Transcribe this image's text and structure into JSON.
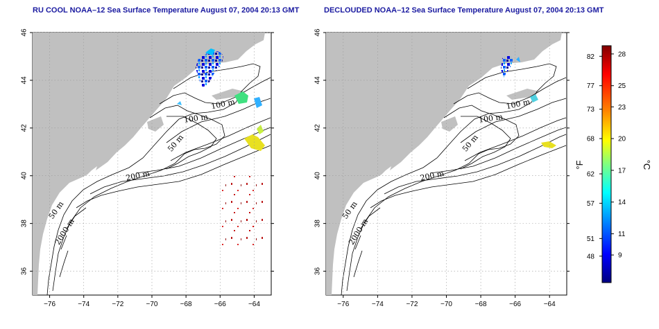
{
  "maps": [
    {
      "title": "RU COOL NOAA–12 Sea Surface Temperature August 07, 2004 20:13 GMT",
      "contour_labels": [
        "100 m",
        "100 m",
        "50 m",
        "200 m",
        "50 m",
        "2000 m"
      ]
    },
    {
      "title": "DECLOUDED NOAA–12 Sea Surface Temperature August 07, 2004 20:13 GMT",
      "contour_labels": [
        "100 m",
        "100 m",
        "50 m",
        "200 m",
        "50 m",
        "2000 m"
      ]
    }
  ],
  "axes": {
    "lon_ticks": [
      "−76",
      "−74",
      "−72",
      "−70",
      "−68",
      "−66",
      "−64"
    ],
    "lat_ticks": [
      "46",
      "44",
      "42",
      "40",
      "38",
      "36"
    ],
    "lon_range": [
      -77,
      -63
    ],
    "lat_range": [
      35,
      46
    ],
    "grid": "dotted"
  },
  "colorbar": {
    "fahrenheit_ticks": [
      "82",
      "77",
      "73",
      "68",
      "62",
      "57",
      "51",
      "48"
    ],
    "celsius_ticks": [
      "28",
      "25",
      "23",
      "20",
      "17",
      "14",
      "11",
      "9"
    ],
    "fahrenheit_unit": "°F",
    "celsius_unit": "°C",
    "colors": [
      "#800000",
      "#ff0000",
      "#ff8000",
      "#ffff00",
      "#80ff80",
      "#00ffff",
      "#0080ff",
      "#0000ff",
      "#000080"
    ]
  },
  "colors": {
    "land": "#c0c0c0",
    "title": "#1a1aa0",
    "grid": "#9a9a9a"
  }
}
